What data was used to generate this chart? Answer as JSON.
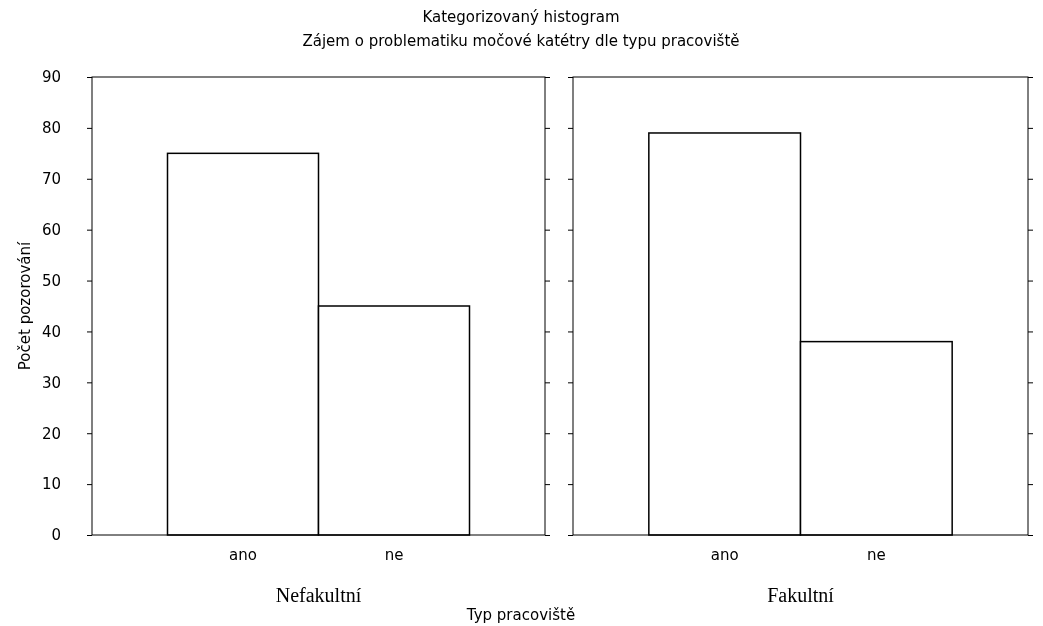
{
  "chart_data": [
    {
      "type": "bar",
      "title": "Kategorizovaný histogram",
      "subtitle": "Zájem o problematiku močové katétry dle typu pracoviště",
      "xlabel": "Nefakultní",
      "ylabel": "Počet pozorování",
      "annotations": [
        "Typ pracoviště"
      ],
      "categories": [
        "ano",
        "ne"
      ],
      "values": [
        75,
        45
      ],
      "color": "#ffffff",
      "ylim": [
        0,
        90
      ],
      "yticks": [
        0,
        10,
        20,
        30,
        40,
        50,
        60,
        70,
        80,
        90
      ]
    },
    {
      "type": "bar",
      "xlabel": "Fakultní",
      "categories": [
        "ano",
        "ne"
      ],
      "values": [
        79,
        38
      ],
      "color": "#ffffff",
      "ylim": [
        0,
        90
      ],
      "yticks": [
        0,
        10,
        20,
        30,
        40,
        50,
        60,
        70,
        80,
        90
      ],
      "tick_labels": "x"
    }
  ]
}
